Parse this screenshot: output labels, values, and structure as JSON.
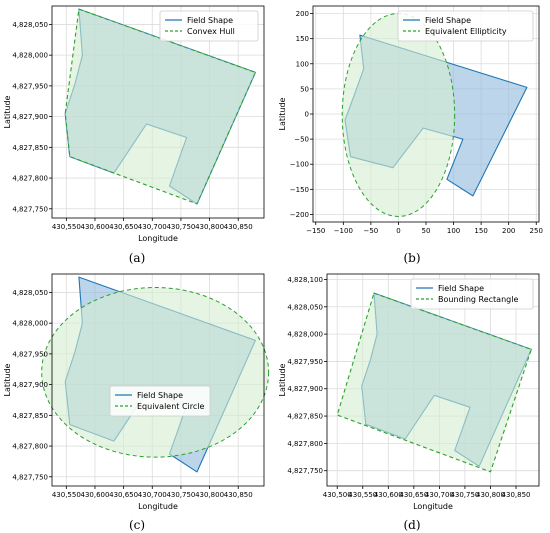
{
  "figure": {
    "captions": [
      "(a)",
      "(b)",
      "(c)",
      "(d)"
    ]
  },
  "colors": {
    "field_line": "#1f77b4",
    "field_fill": "#8fb9dd",
    "compare_line": "#2ca02c",
    "compare_fill": "#d4ecd0",
    "grid": "#dcdcdc"
  },
  "chart_data": [
    {
      "type": "area",
      "panel": "a",
      "xlabel": "Longitude",
      "ylabel": "Latitude",
      "xlim": [
        430525,
        430895
      ],
      "ylim": [
        4827735,
        4828080
      ],
      "xticks": [
        430550,
        430600,
        430650,
        430700,
        430750,
        430800,
        430850
      ],
      "xtick_labels": [
        "430,550",
        "430,600",
        "430,650",
        "430,700",
        "430,750",
        "430,800",
        "430,850"
      ],
      "yticks": [
        4827750,
        4827800,
        4827850,
        4827900,
        4827950,
        4828000,
        4828050
      ],
      "ytick_labels": [
        "4,827,750",
        "4,827,800",
        "4,827,850",
        "4,827,900",
        "4,827,950",
        "4,828,000",
        "4,828,050"
      ],
      "grid": true,
      "legend_position": "top-right",
      "series": [
        {
          "name": "Field Shape",
          "style": "solid",
          "fill": "field",
          "points": [
            [
              430572,
              4828075
            ],
            [
              430880,
              4827972
            ],
            [
              430778,
              4827758
            ],
            [
              430730,
              4827787
            ],
            [
              430760,
              4827866
            ],
            [
              430690,
              4827888
            ],
            [
              430633,
              4827808
            ],
            [
              430556,
              4827835
            ],
            [
              430548,
              4827905
            ],
            [
              430565,
              4827953
            ],
            [
              430578,
              4828000
            ],
            [
              430572,
              4828075
            ]
          ]
        },
        {
          "name": "Convex Hull",
          "style": "dashed",
          "fill": "compare",
          "points": [
            [
              430572,
              4828075
            ],
            [
              430880,
              4827972
            ],
            [
              430778,
              4827758
            ],
            [
              430556,
              4827835
            ],
            [
              430548,
              4827905
            ],
            [
              430572,
              4828075
            ]
          ]
        }
      ]
    },
    {
      "type": "area",
      "panel": "b",
      "xlabel": "",
      "ylabel": "Latitude",
      "xlim": [
        -155,
        255
      ],
      "ylim": [
        -215,
        215
      ],
      "xticks": [
        -150,
        -100,
        -50,
        0,
        50,
        100,
        150,
        200,
        250
      ],
      "xtick_labels": [
        "−150",
        "−100",
        "−50",
        "0",
        "50",
        "100",
        "150",
        "200",
        "250"
      ],
      "yticks": [
        -200,
        -150,
        -100,
        -50,
        0,
        50,
        100,
        150,
        200
      ],
      "ytick_labels": [
        "−200",
        "−150",
        "−100",
        "−50",
        "0",
        "50",
        "100",
        "150",
        "200"
      ],
      "grid": true,
      "legend_position": "top-right",
      "series": [
        {
          "name": "Field Shape",
          "style": "solid",
          "fill": "field",
          "points": [
            [
              -70,
              157
            ],
            [
              233,
              53
            ],
            [
              135,
              -163
            ],
            [
              88,
              -130
            ],
            [
              117,
              -50
            ],
            [
              45,
              -28
            ],
            [
              -10,
              -107
            ],
            [
              -87,
              -85
            ],
            [
              -97,
              -12
            ],
            [
              -80,
              38
            ],
            [
              -63,
              90
            ],
            [
              -70,
              157
            ]
          ]
        },
        {
          "name": "Equivalent Ellipticity",
          "style": "dashed",
          "fill": "compare",
          "shape": "ellipse",
          "center": [
            0,
            -2
          ],
          "radii": [
            102,
            202
          ]
        }
      ]
    },
    {
      "type": "area",
      "panel": "c",
      "xlabel": "Longitude",
      "ylabel": "Latitude",
      "xlim": [
        430525,
        430895
      ],
      "ylim": [
        4827735,
        4828080
      ],
      "xticks": [
        430550,
        430600,
        430650,
        430700,
        430750,
        430800,
        430850
      ],
      "xtick_labels": [
        "430,550",
        "430,600",
        "430,650",
        "430,700",
        "430,750",
        "430,800",
        "430,850"
      ],
      "yticks": [
        4827750,
        4827800,
        4827850,
        4827900,
        4827950,
        4828000,
        4828050
      ],
      "ytick_labels": [
        "4,827,750",
        "4,827,800",
        "4,827,850",
        "4,827,900",
        "4,827,950",
        "4,828,000",
        "4,828,050"
      ],
      "grid": true,
      "legend_position": "center",
      "series": [
        {
          "name": "Field Shape",
          "style": "solid",
          "fill": "field",
          "points": [
            [
              430572,
              4828075
            ],
            [
              430880,
              4827972
            ],
            [
              430778,
              4827758
            ],
            [
              430730,
              4827787
            ],
            [
              430760,
              4827866
            ],
            [
              430690,
              4827888
            ],
            [
              430633,
              4827808
            ],
            [
              430556,
              4827835
            ],
            [
              430548,
              4827905
            ],
            [
              430565,
              4827953
            ],
            [
              430578,
              4828000
            ],
            [
              430572,
              4828075
            ]
          ]
        },
        {
          "name": "Equivalent Circle",
          "style": "dashed",
          "fill": "compare",
          "shape": "ellipse",
          "center": [
            430705,
            4827920
          ],
          "radii": [
            198,
            138
          ]
        }
      ]
    },
    {
      "type": "area",
      "panel": "d",
      "xlabel": "Longitude",
      "ylabel": "Latitude",
      "xlim": [
        430480,
        430895
      ],
      "ylim": [
        4827722,
        4828110
      ],
      "xticks": [
        430500,
        430550,
        430600,
        430650,
        430700,
        430750,
        430800,
        430850
      ],
      "xtick_labels": [
        "430,500",
        "430,550",
        "430,600",
        "430,650",
        "430,700",
        "430,750",
        "430,800",
        "430,850"
      ],
      "yticks": [
        4827750,
        4827800,
        4827850,
        4827900,
        4827950,
        4828000,
        4828050,
        4828100
      ],
      "ytick_labels": [
        "4,827,750",
        "4,827,800",
        "4,827,850",
        "4,827,900",
        "4,827,950",
        "4,828,000",
        "4,828,050",
        "4,828,100"
      ],
      "grid": true,
      "legend_position": "top-right",
      "series": [
        {
          "name": "Field Shape",
          "style": "solid",
          "fill": "field",
          "points": [
            [
              430572,
              4828075
            ],
            [
              430880,
              4827972
            ],
            [
              430778,
              4827758
            ],
            [
              430730,
              4827787
            ],
            [
              430760,
              4827866
            ],
            [
              430690,
              4827888
            ],
            [
              430633,
              4827808
            ],
            [
              430556,
              4827835
            ],
            [
              430548,
              4827905
            ],
            [
              430565,
              4827953
            ],
            [
              430578,
              4828000
            ],
            [
              430572,
              4828075
            ]
          ]
        },
        {
          "name": "Bounding Rectangle",
          "style": "dashed",
          "fill": "compare",
          "points": [
            [
              430572,
              4828075
            ],
            [
              430880,
              4827972
            ],
            [
              430800,
              4827748
            ],
            [
              430500,
              4827852
            ],
            [
              430572,
              4828075
            ]
          ]
        }
      ]
    }
  ]
}
